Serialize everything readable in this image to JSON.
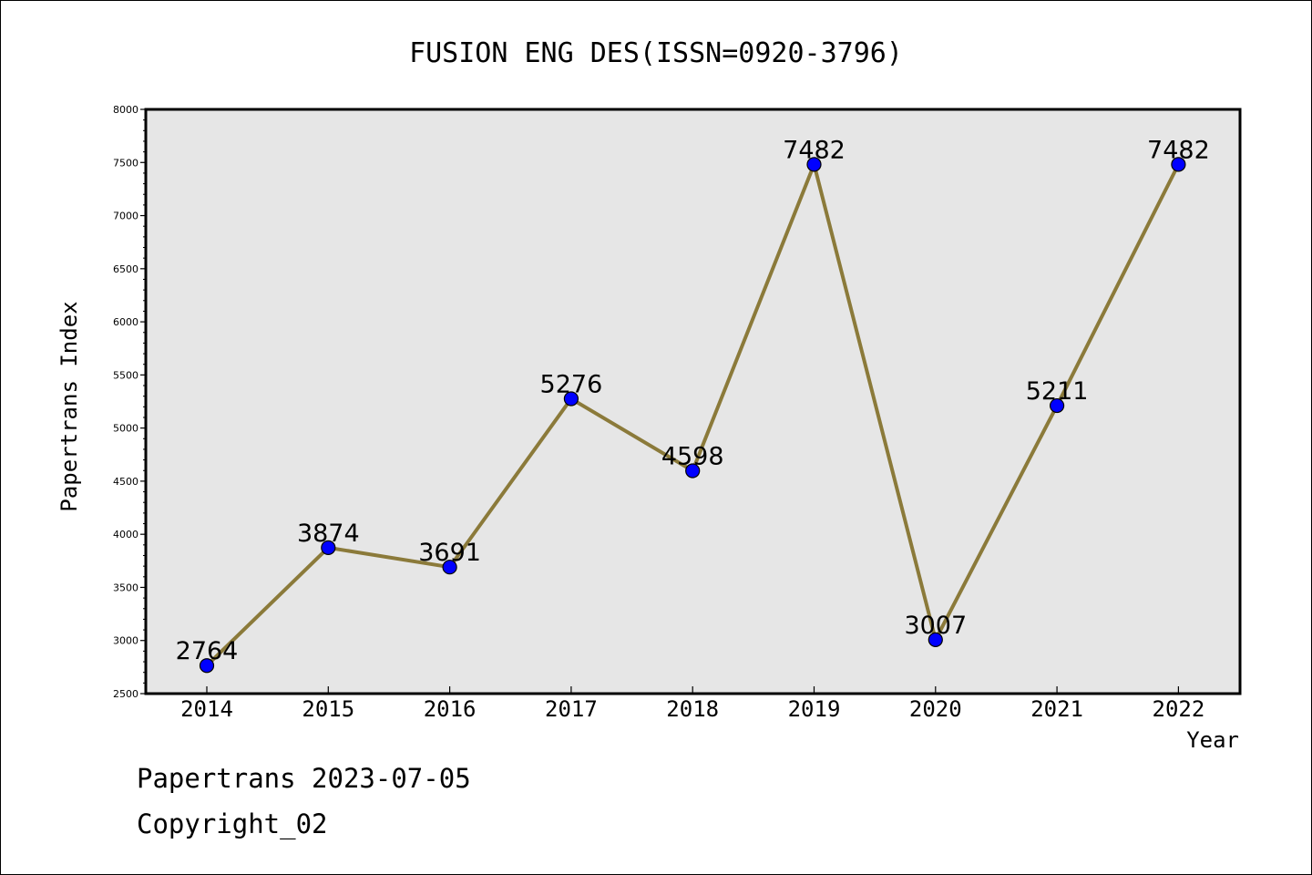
{
  "chart_data": {
    "type": "line",
    "title": "FUSION ENG DES(ISSN=0920-3796)",
    "xlabel": "Year",
    "ylabel": "Papertrans Index",
    "categories": [
      "2014",
      "2015",
      "2016",
      "2017",
      "2018",
      "2019",
      "2020",
      "2021",
      "2022"
    ],
    "values": [
      2764,
      3874,
      3691,
      5276,
      4598,
      7482,
      3007,
      5211,
      7482
    ],
    "data_labels": [
      "2764",
      "3874",
      "3691",
      "5276",
      "4598",
      "7482",
      "3007",
      "5211",
      "7482"
    ],
    "ylim": [
      2500,
      8000
    ],
    "yticks": [
      "2500",
      "3000",
      "3500",
      "4000",
      "4500",
      "5000",
      "5500",
      "6000",
      "6500",
      "7000",
      "7500",
      "8000"
    ],
    "grid": false,
    "line_color": "#8b7a3a",
    "marker_color": "#0000ff",
    "plot_background": "#e6e6e6"
  },
  "footer": {
    "line1": "Papertrans 2023-07-05",
    "line2": "Copyright_02"
  }
}
